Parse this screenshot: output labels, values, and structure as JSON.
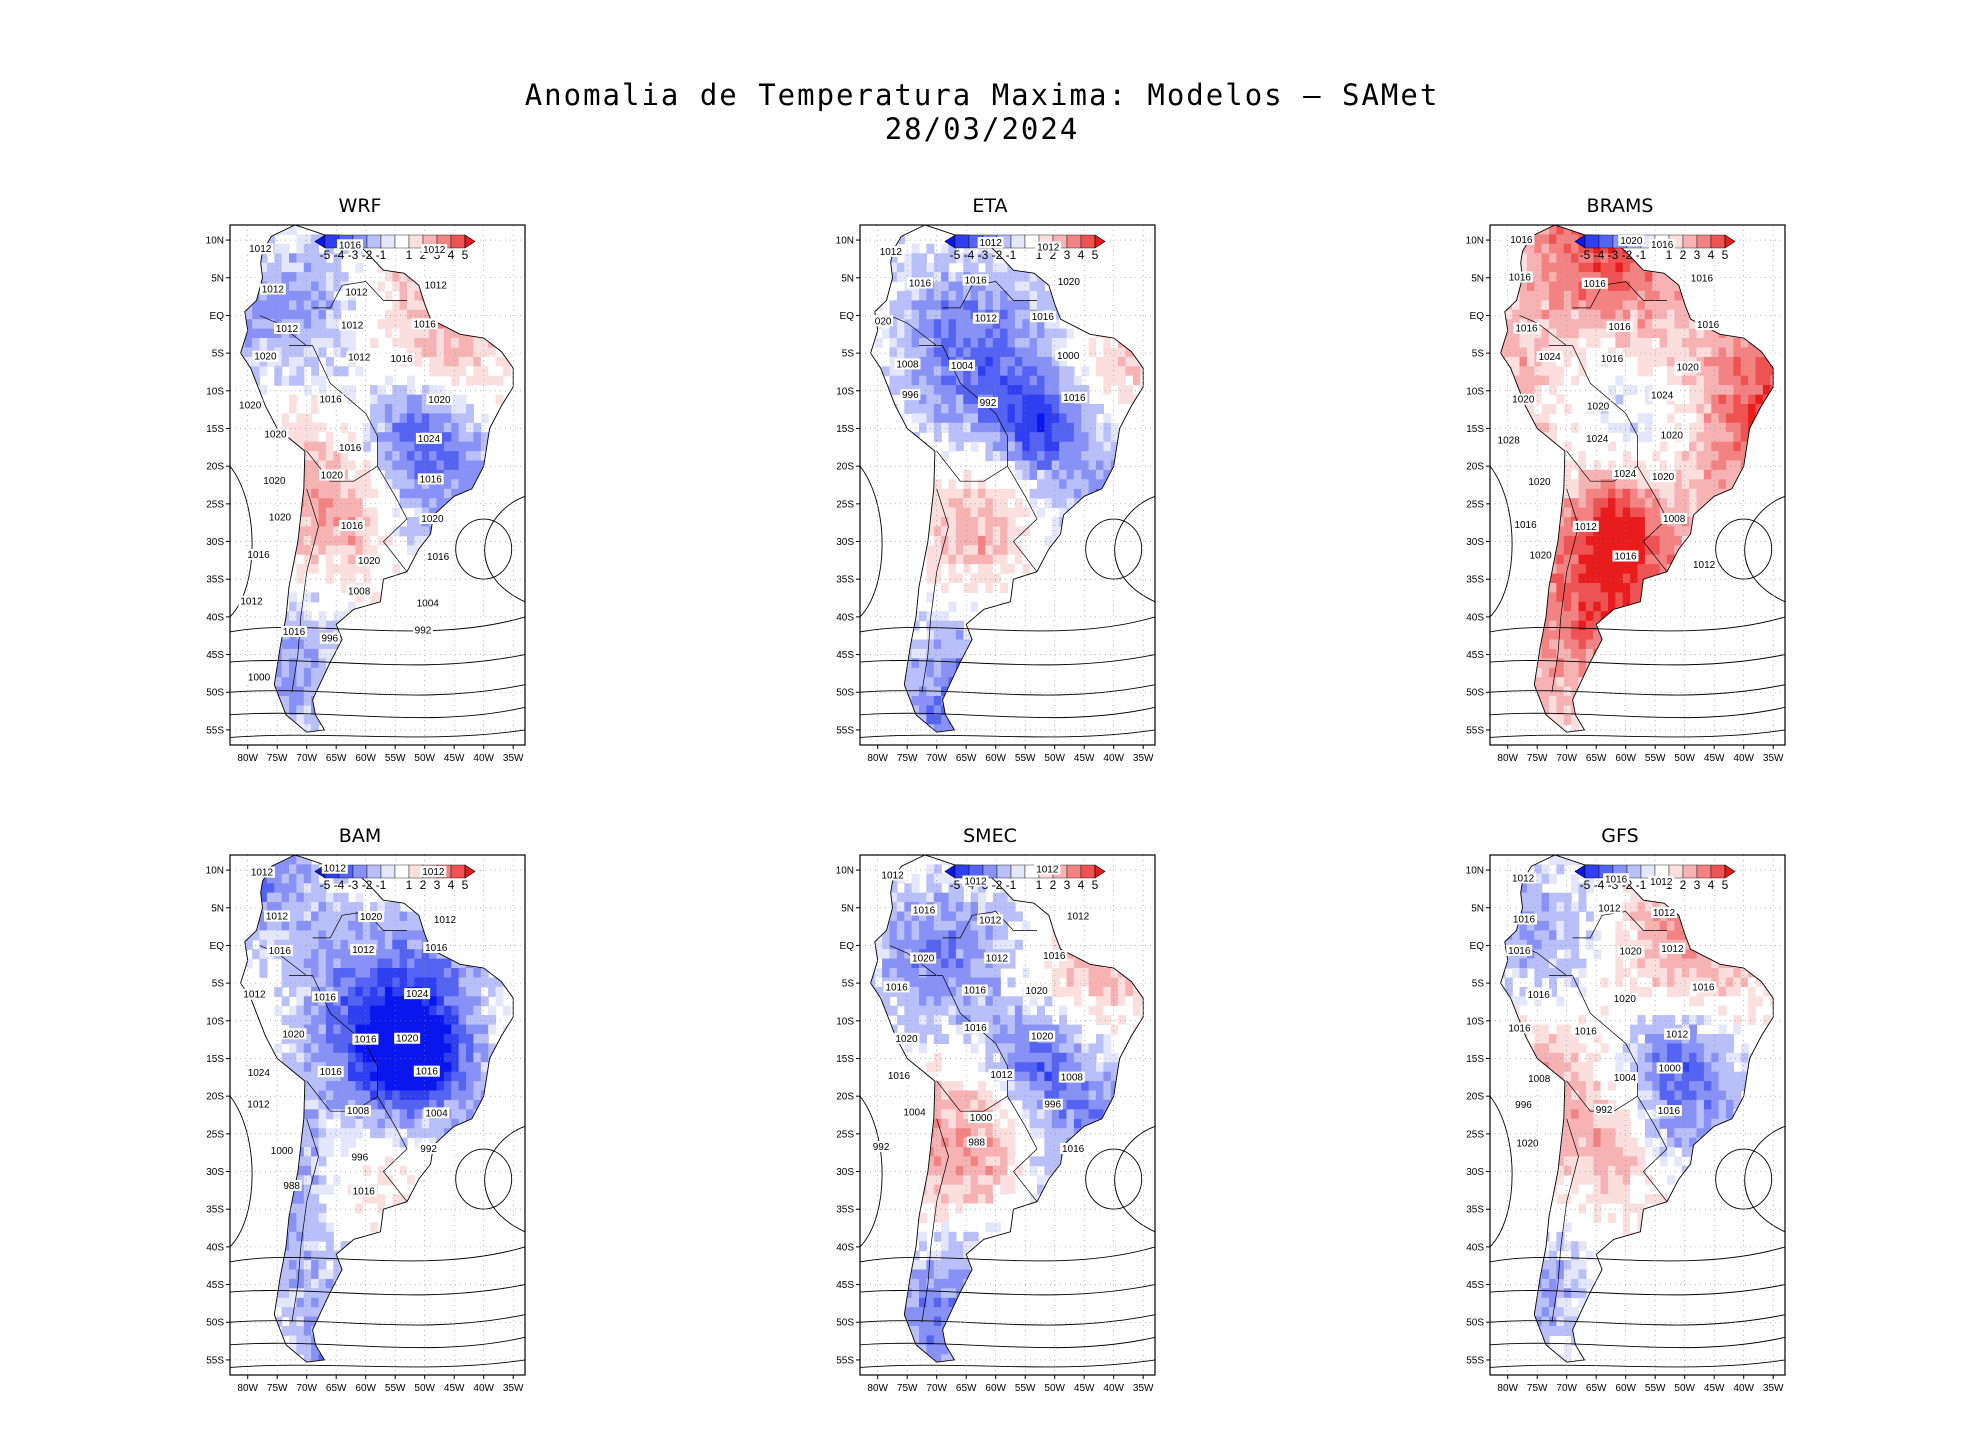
{
  "title": {
    "line1": "Anomalia de Temperatura Maxima: Modelos — SAMet",
    "line2": "28/03/2024"
  },
  "colorbar": {
    "labels": [
      "-5",
      "-4",
      "-3",
      "-2",
      "-1",
      "1",
      "2",
      "3",
      "4",
      "5"
    ],
    "colors": [
      "#0a16ee",
      "#2f3ff0",
      "#5563f3",
      "#8891f6",
      "#b9bff9",
      "#e4e6fc",
      "#ffffff",
      "#fbdede",
      "#f7b3b3",
      "#f38383",
      "#ef5252",
      "#e81c1c"
    ]
  },
  "axes": {
    "lat_labels": [
      "10N",
      "5N",
      "EQ",
      "5S",
      "10S",
      "15S",
      "20S",
      "25S",
      "30S",
      "35S",
      "40S",
      "45S",
      "50S",
      "55S"
    ],
    "lon_labels": [
      "80W",
      "75W",
      "70W",
      "65W",
      "60W",
      "55W",
      "50W",
      "45W",
      "40W",
      "35W"
    ]
  },
  "panels": [
    {
      "name": "WRF",
      "mood": 0.1,
      "contours": [
        "1012",
        "1016",
        "1012",
        "1012",
        "1012",
        "1012",
        "1012",
        "1012",
        "1016",
        "1020",
        "1012",
        "1016",
        "1020",
        "1016",
        "1020",
        "1020",
        "1016",
        "1024",
        "1020",
        "1020",
        "1016",
        "1020",
        "1016",
        "1020",
        "1016",
        "1020",
        "1016",
        "1012",
        "1008",
        "1004",
        "1016",
        "996",
        "992",
        "1000"
      ]
    },
    {
      "name": "ETA",
      "mood": -0.25,
      "contours": [
        "1012",
        "1012",
        "1012",
        "1016",
        "1016",
        "1020",
        "020",
        "1012",
        "1016",
        "1008",
        "1004",
        "1000",
        "996",
        "992",
        "1016"
      ]
    },
    {
      "name": "BRAMS",
      "mood": 0.75,
      "contours": [
        "1016",
        "1020",
        "1016",
        "1016",
        "1016",
        "1016",
        "1016",
        "1016",
        "1016",
        "1024",
        "1016",
        "1020",
        "1020",
        "1020",
        "1024",
        "1028",
        "1024",
        "1020",
        "1020",
        "1024",
        "1020",
        "1016",
        "1012",
        "1008",
        "1020",
        "1016",
        "1012"
      ]
    },
    {
      "name": "BAM",
      "mood": -0.55,
      "contours": [
        "1012",
        "1012",
        "1012",
        "1012",
        "1020",
        "1012",
        "1016",
        "1012",
        "1016",
        "1012",
        "1016",
        "1024",
        "1020",
        "1016",
        "1020",
        "1024",
        "1016",
        "1016",
        "1012",
        "1008",
        "1004",
        "1000",
        "996",
        "992",
        "988",
        "1016"
      ]
    },
    {
      "name": "SMEC",
      "mood": -0.05,
      "contours": [
        "1012",
        "1012",
        "1012",
        "1016",
        "1012",
        "1012",
        "1020",
        "1012",
        "1016",
        "1016",
        "1016",
        "1020",
        "1020",
        "1016",
        "1020",
        "1016",
        "1012",
        "1008",
        "1004",
        "1000",
        "996",
        "992",
        "988",
        "1016"
      ]
    },
    {
      "name": "GFS",
      "mood": 0.2,
      "contours": [
        "1012",
        "1016",
        "1012",
        "1016",
        "1012",
        "1012",
        "1016",
        "1020",
        "1012",
        "1016",
        "1020",
        "1016",
        "1016",
        "1016",
        "1012",
        "1008",
        "1004",
        "1000",
        "996",
        "992",
        "1016",
        "1020"
      ]
    }
  ]
}
